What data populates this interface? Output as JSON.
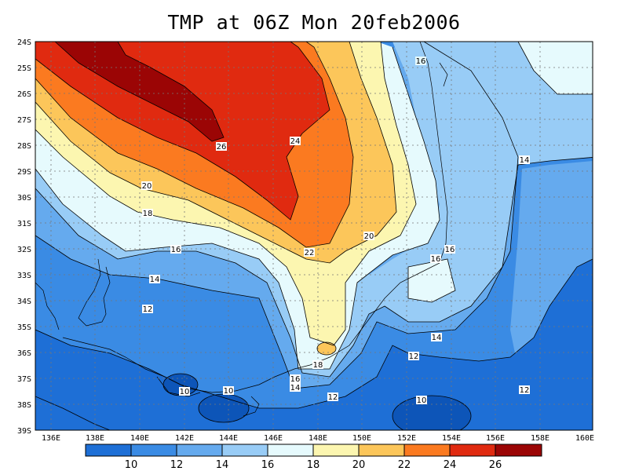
{
  "title": "TMP at 06Z Mon 20feb2006",
  "lat_labels": [
    "24S",
    "25S",
    "26S",
    "27S",
    "28S",
    "29S",
    "30S",
    "31S",
    "32S",
    "33S",
    "34S",
    "35S",
    "36S",
    "37S",
    "38S",
    "39S"
  ],
  "lon_labels": [
    "136E",
    "138E",
    "140E",
    "142E",
    "144E",
    "146E",
    "148E",
    "150E",
    "152E",
    "154E",
    "156E",
    "158E",
    "160E"
  ],
  "colorbar": {
    "colors": [
      "#1e6fd6",
      "#3a8be4",
      "#65aaee",
      "#98ccf6",
      "#e6fafd",
      "#fcf6b0",
      "#fcc65a",
      "#fb7a20",
      "#e02a10",
      "#9b0505"
    ],
    "tick_labels": [
      "10",
      "12",
      "14",
      "16",
      "18",
      "20",
      "22",
      "24",
      "26"
    ]
  },
  "contour_labels": [
    {
      "text": "16"
    },
    {
      "text": "26"
    },
    {
      "text": "24"
    },
    {
      "text": "14"
    },
    {
      "text": "20"
    },
    {
      "text": "18"
    },
    {
      "text": "20"
    },
    {
      "text": "16"
    },
    {
      "text": "16"
    },
    {
      "text": "22"
    },
    {
      "text": "16"
    },
    {
      "text": "14"
    },
    {
      "text": "12"
    },
    {
      "text": "14"
    },
    {
      "text": "12"
    },
    {
      "text": "18"
    },
    {
      "text": "16"
    },
    {
      "text": "14"
    },
    {
      "text": "10"
    },
    {
      "text": "10"
    },
    {
      "text": "12"
    },
    {
      "text": "10"
    },
    {
      "text": "12"
    }
  ]
}
